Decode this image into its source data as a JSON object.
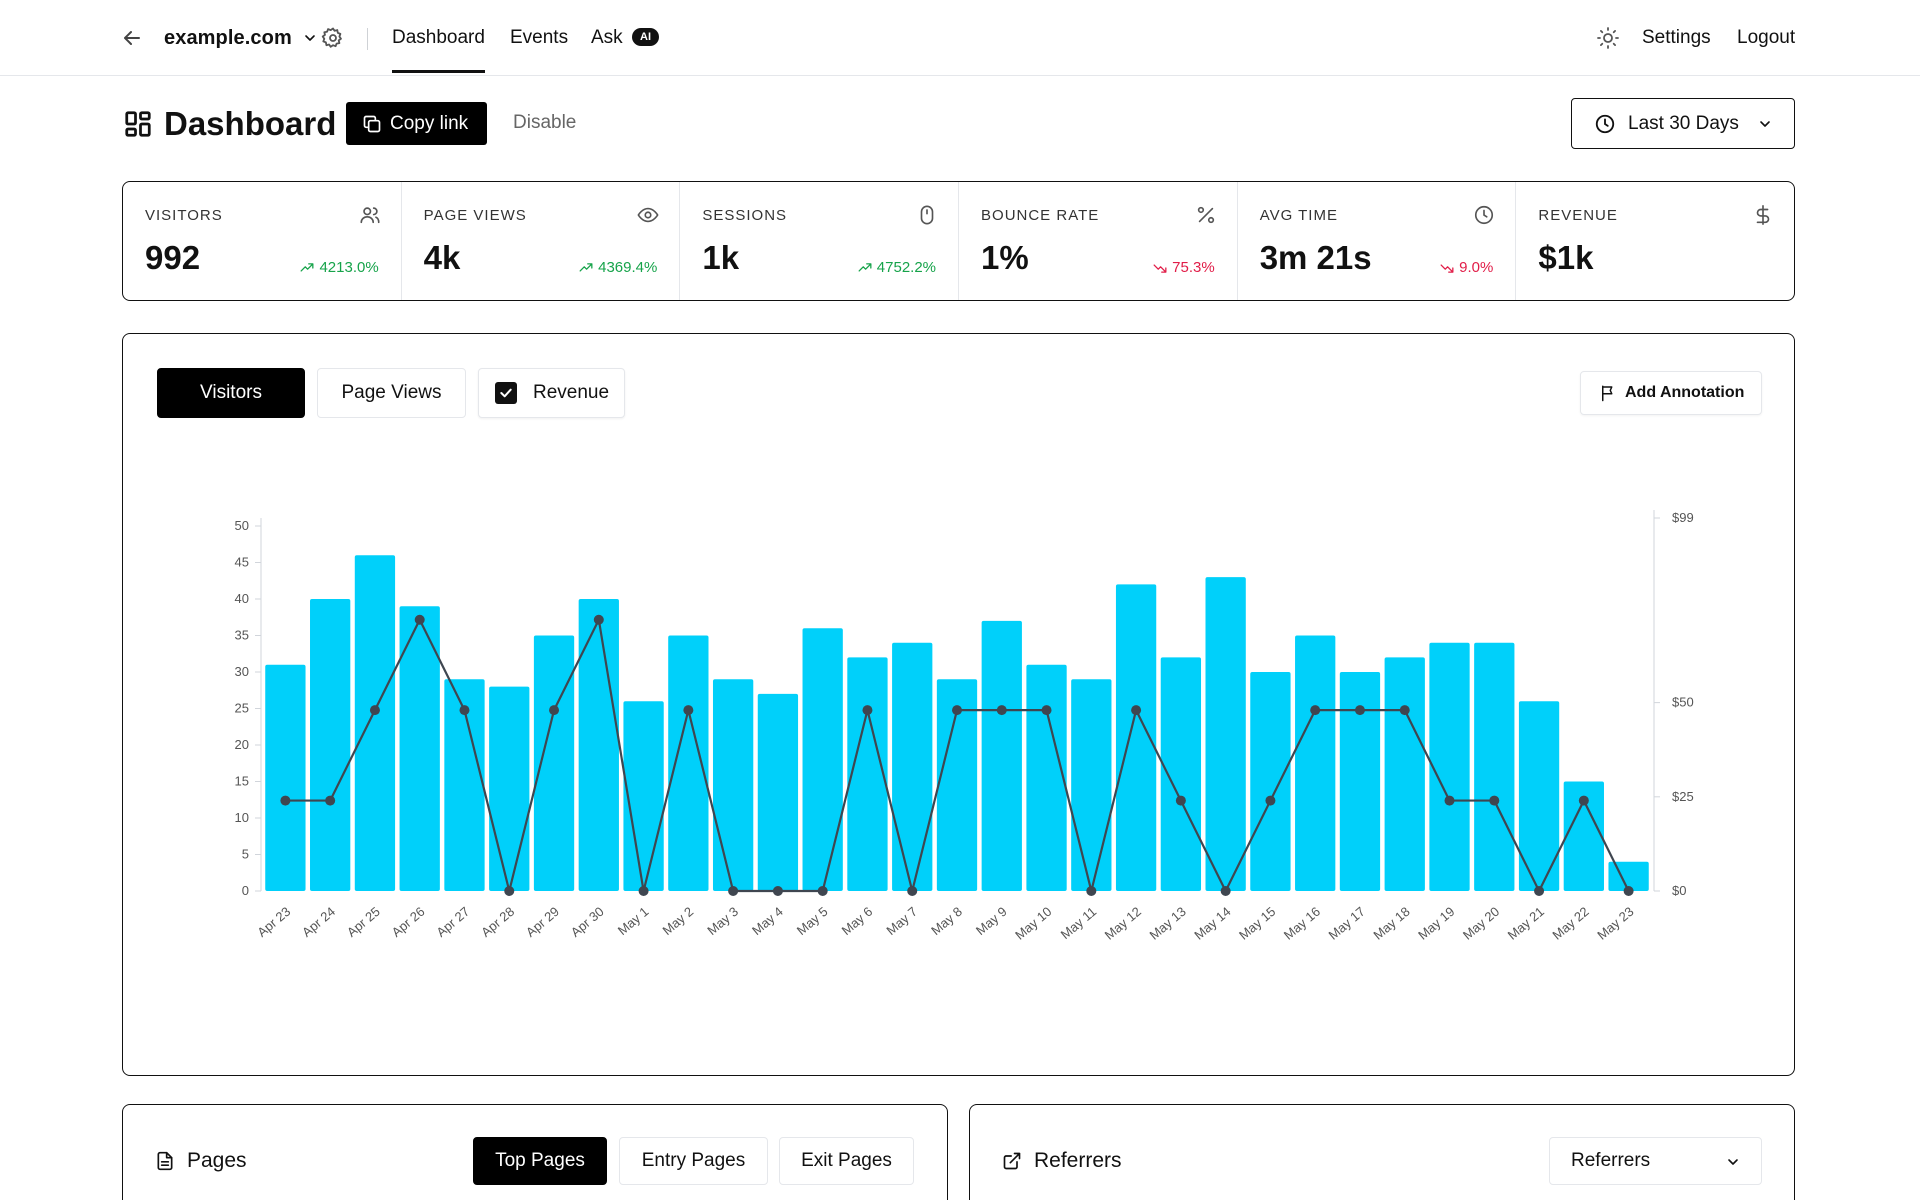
{
  "nav": {
    "site": "example.com",
    "tabs": [
      "Dashboard",
      "Events",
      "Ask"
    ],
    "ai_badge": "AI",
    "settings": "Settings",
    "logout": "Logout"
  },
  "header": {
    "title": "Dashboard",
    "copy_link": "Copy link",
    "disable": "Disable",
    "date_range": "Last 30 Days"
  },
  "kpis": [
    {
      "label": "VISITORS",
      "value": "992",
      "change": "4213.0%",
      "trend": "up",
      "icon": "users-icon"
    },
    {
      "label": "PAGE VIEWS",
      "value": "4k",
      "change": "4369.4%",
      "trend": "up",
      "icon": "eye-icon"
    },
    {
      "label": "SESSIONS",
      "value": "1k",
      "change": "4752.2%",
      "trend": "up",
      "icon": "mouse-icon"
    },
    {
      "label": "BOUNCE RATE",
      "value": "1%",
      "change": "75.3%",
      "trend": "down",
      "icon": "percent-icon"
    },
    {
      "label": "AVG TIME",
      "value": "3m 21s",
      "change": "9.0%",
      "trend": "down",
      "icon": "clock-icon"
    },
    {
      "label": "REVENUE",
      "value": "$1k",
      "change": "",
      "trend": "none",
      "icon": "dollar-icon"
    }
  ],
  "chart_tabs": {
    "visitors": "Visitors",
    "page_views": "Page Views",
    "revenue": "Revenue",
    "add_annotation": "Add Annotation"
  },
  "chart_data": {
    "type": "bar",
    "categories": [
      "Apr 23",
      "Apr 24",
      "Apr 25",
      "Apr 26",
      "Apr 27",
      "Apr 28",
      "Apr 29",
      "Apr 30",
      "May 1",
      "May 2",
      "May 3",
      "May 4",
      "May 5",
      "May 6",
      "May 7",
      "May 8",
      "May 9",
      "May 10",
      "May 11",
      "May 12",
      "May 13",
      "May 14",
      "May 15",
      "May 16",
      "May 17",
      "May 18",
      "May 19",
      "May 20",
      "May 21",
      "May 22",
      "May 23"
    ],
    "series": [
      {
        "values": [
          31,
          40,
          46,
          39,
          29,
          28,
          35,
          40,
          26,
          35,
          29,
          27,
          36,
          32,
          34,
          29,
          37,
          31,
          29,
          42,
          32,
          43,
          30,
          35,
          30,
          32,
          34,
          34,
          26,
          15,
          4
        ],
        "axis": "left",
        "color": "#00d0fa"
      },
      {
        "values": [
          24,
          24,
          48,
          72,
          48,
          0,
          48,
          72,
          0,
          48,
          0,
          0,
          0,
          48,
          0,
          48,
          48,
          48,
          0,
          48,
          24,
          0,
          24,
          48,
          48,
          48,
          24,
          24,
          0,
          24,
          0
        ],
        "axis": "right",
        "type": "line",
        "color": "#3f4650"
      }
    ],
    "y_left": {
      "min": 0,
      "max": 50,
      "ticks": [
        0,
        5,
        10,
        15,
        20,
        25,
        30,
        35,
        40,
        45,
        50
      ]
    },
    "y_right": {
      "min": 0,
      "max": 99,
      "ticks": [
        "$0",
        "$25",
        "$50",
        "$99"
      ],
      "tick_values": [
        0,
        25,
        50,
        99
      ]
    },
    "grid": false,
    "legend": "none"
  },
  "bottom": {
    "pages_title": "Pages",
    "pages_tabs": [
      "Top Pages",
      "Entry Pages",
      "Exit Pages"
    ],
    "referrers_title": "Referrers",
    "referrers_select": "Referrers"
  }
}
